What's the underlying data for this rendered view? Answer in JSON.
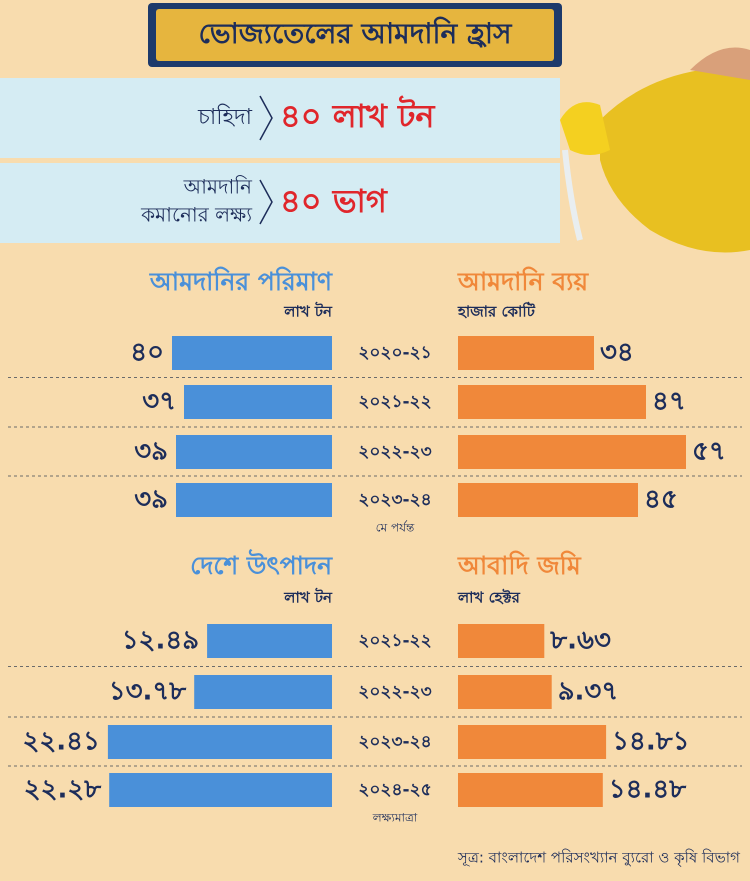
{
  "title": "ভোজ্যতেলের আমদানি হ্রাস",
  "header": {
    "demand_label": "চাহিদা",
    "demand_value": "৪০ লাখ টন",
    "target_label": [
      "আমদানি",
      "কমানোর লক্ষ্য"
    ],
    "target_value": "৪০ ভাগ"
  },
  "chart_data": [
    {
      "type": "bar",
      "categories": [
        "২০২০-২১",
        "২০২১-২২",
        "২০২২-২৩",
        "২০২৩-২৪"
      ],
      "annotation": "মে পর্যন্ত",
      "series": [
        {
          "name": "আমদানির পরিমাণ",
          "unit": "লাখ টন",
          "color": "#4a90d9",
          "values": [
            40,
            37,
            39,
            39
          ],
          "value_labels": [
            "৪০",
            "৩৭",
            "৩৯",
            "৩৯"
          ]
        },
        {
          "name": "আমদানি ব্যয়",
          "unit": "হাজার কোটি",
          "color": "#f0883a",
          "values": [
            34,
            47,
            57,
            45
          ],
          "value_labels": [
            "৩৪",
            "৪৭",
            "৫৭",
            "৪৫"
          ]
        }
      ]
    },
    {
      "type": "bar",
      "categories": [
        "২০২১-২২",
        "২০২২-২৩",
        "২০২৩-২৪",
        "২০২৪-২৫"
      ],
      "annotation": "লক্ষ্যমাত্রা",
      "series": [
        {
          "name": "দেশে উৎপাদন",
          "unit": "লাখ টন",
          "color": "#4a90d9",
          "values": [
            12.49,
            13.78,
            22.41,
            22.28
          ],
          "value_labels": [
            "১২.৪৯",
            "১৩.৭৮",
            "২২.৪১",
            "২২.২৮"
          ]
        },
        {
          "name": "আবাদি জমি",
          "unit": "লাখ হেক্টর",
          "color": "#f0883a",
          "values": [
            8.63,
            9.37,
            14.81,
            14.48
          ],
          "value_labels": [
            "৮.৬৩",
            "৯.৩৭",
            "১৪.৮১",
            "১৪.৪৮"
          ]
        }
      ]
    }
  ],
  "source": "সূত্র: বাংলাদেশ পরিসংখ্যান ব্যুরো ও কৃষি বিভাগ"
}
